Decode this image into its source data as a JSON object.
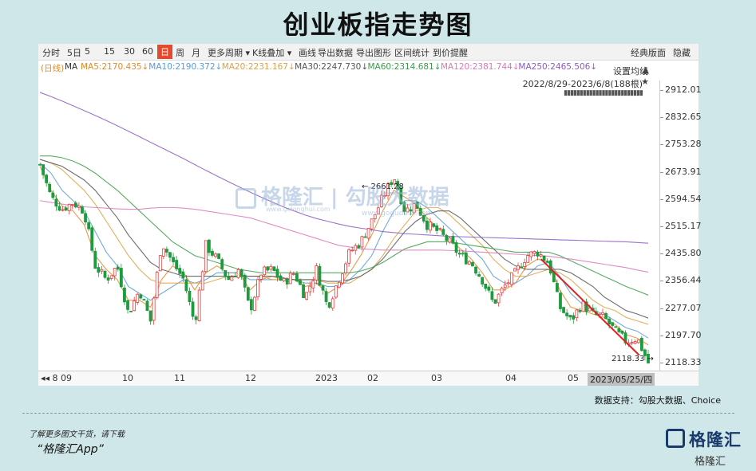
{
  "title": "创业板指走势图",
  "toolbar": {
    "items": [
      "分时",
      "5日",
      "5",
      "15",
      "30",
      "60",
      "日",
      "周",
      "月",
      "更多周期",
      "K线叠加",
      "画线",
      "导出数据",
      "导出图形",
      "区间统计",
      "到价提醒"
    ],
    "active": "日",
    "right_items": [
      "经典版面",
      "隐藏"
    ]
  },
  "ma_legend": {
    "prefix": "(日线)",
    "ma": "MA",
    "items": [
      {
        "label": "MA5:2170.435↓",
        "color": "#e28b2a"
      },
      {
        "label": "MA10:2190.372↓",
        "color": "#5a9bd8"
      },
      {
        "label": "MA20:2231.167↓",
        "color": "#e0a040"
      },
      {
        "label": "MA30:2247.730↓",
        "color": "#555555"
      },
      {
        "label": "MA60:2314.681↓",
        "color": "#3a9c4a"
      },
      {
        "label": "MA120:2381.744↓",
        "color": "#d978b8"
      },
      {
        "label": "MA250:2465.506↓",
        "color": "#8a5cc0"
      }
    ]
  },
  "setting_label": "设置均线",
  "range_label": "2022/8/29-2023/6/8(188根)",
  "watermark": {
    "text": "格隆汇 | 勾股大数据",
    "sub1": "www.gelonghui.com",
    "sub2": "www.gogudata.com"
  },
  "annotations": {
    "high": "2661.28",
    "low": "2118.33"
  },
  "x_axis_labels": [
    "8 09",
    "10",
    "11",
    "12",
    "2023",
    "02",
    "03",
    "04",
    "05"
  ],
  "x_axis_current": "2023/05/25/四",
  "source": "数据支持：勾股大数据、Choice",
  "footer_line1": "了解更多图文干货，请下载",
  "footer_line2": "“格隆汇App”",
  "logo": {
    "text": "格隆汇",
    "sub": "格隆汇"
  },
  "chart_data": {
    "type": "candlestick",
    "title": "创业板指走势图",
    "y_ticks": [
      2912.01,
      2832.65,
      2753.28,
      2673.91,
      2594.54,
      2515.17,
      2435.8,
      2356.44,
      2277.07,
      2197.7,
      2118.33
    ],
    "ylim": [
      2100,
      2935
    ],
    "x_ticks": [
      "8 09",
      "10",
      "11",
      "12",
      "2023",
      "02",
      "03",
      "04",
      "05"
    ],
    "date_range": "2022/8/29-2023/6/8",
    "bars": 188,
    "close_path": [
      2695,
      2600,
      2565,
      2585,
      2560,
      2400,
      2360,
      2400,
      2260,
      2330,
      2240,
      2470,
      2410,
      2360,
      2230,
      2460,
      2420,
      2360,
      2390,
      2270,
      2380,
      2390,
      2350,
      2380,
      2310,
      2390,
      2280,
      2360,
      2440,
      2470,
      2530,
      2600,
      2661,
      2560,
      2580,
      2520,
      2500,
      2470,
      2430,
      2410,
      2360,
      2290,
      2340,
      2380,
      2430,
      2440,
      2410,
      2280,
      2240,
      2290,
      2260,
      2250,
      2210,
      2180,
      2190,
      2118
    ],
    "ma_series": [
      {
        "name": "MA5",
        "color": "#e28b2a",
        "values": [
          2690,
          2620,
          2575,
          2560,
          2520,
          2430,
          2390,
          2360,
          2300,
          2300,
          2280,
          2360,
          2400,
          2380,
          2330,
          2380,
          2400,
          2380,
          2380,
          2330,
          2360,
          2370,
          2360,
          2360,
          2340,
          2350,
          2320,
          2340,
          2380,
          2430,
          2490,
          2560,
          2620,
          2600,
          2580,
          2540,
          2510,
          2480,
          2450,
          2420,
          2380,
          2330,
          2330,
          2350,
          2400,
          2420,
          2410,
          2330,
          2280,
          2270,
          2260,
          2250,
          2230,
          2200,
          2190,
          2170
        ]
      },
      {
        "name": "MA10",
        "color": "#5a9bd8",
        "values": [
          2700,
          2670,
          2620,
          2590,
          2560,
          2500,
          2440,
          2400,
          2340,
          2320,
          2300,
          2320,
          2340,
          2360,
          2350,
          2360,
          2380,
          2380,
          2380,
          2360,
          2360,
          2360,
          2360,
          2360,
          2350,
          2350,
          2340,
          2340,
          2360,
          2390,
          2430,
          2500,
          2560,
          2590,
          2590,
          2570,
          2540,
          2510,
          2480,
          2450,
          2420,
          2370,
          2350,
          2350,
          2370,
          2400,
          2410,
          2370,
          2320,
          2290,
          2270,
          2260,
          2240,
          2220,
          2210,
          2190
        ]
      },
      {
        "name": "MA20",
        "color": "#e0a040",
        "values": [
          2710,
          2700,
          2680,
          2650,
          2620,
          2580,
          2530,
          2480,
          2430,
          2390,
          2360,
          2350,
          2350,
          2350,
          2350,
          2350,
          2360,
          2370,
          2370,
          2370,
          2370,
          2360,
          2360,
          2360,
          2360,
          2360,
          2350,
          2350,
          2350,
          2370,
          2390,
          2430,
          2480,
          2520,
          2560,
          2570,
          2570,
          2550,
          2520,
          2490,
          2460,
          2420,
          2390,
          2370,
          2370,
          2380,
          2390,
          2380,
          2360,
          2330,
          2300,
          2280,
          2270,
          2250,
          2240,
          2230
        ]
      },
      {
        "name": "MA30",
        "color": "#555555",
        "values": [
          2710,
          2700,
          2690,
          2670,
          2650,
          2620,
          2580,
          2540,
          2490,
          2450,
          2410,
          2390,
          2380,
          2370,
          2370,
          2370,
          2370,
          2370,
          2370,
          2370,
          2370,
          2370,
          2365,
          2360,
          2360,
          2360,
          2355,
          2355,
          2360,
          2370,
          2390,
          2420,
          2460,
          2500,
          2530,
          2550,
          2560,
          2560,
          2540,
          2510,
          2480,
          2450,
          2420,
          2400,
          2390,
          2390,
          2390,
          2390,
          2380,
          2360,
          2340,
          2310,
          2290,
          2270,
          2260,
          2248
        ]
      },
      {
        "name": "MA60",
        "color": "#3a9c4a",
        "values": [
          2720,
          2720,
          2715,
          2705,
          2690,
          2670,
          2645,
          2620,
          2590,
          2560,
          2530,
          2500,
          2470,
          2450,
          2430,
          2420,
          2410,
          2400,
          2390,
          2385,
          2380,
          2380,
          2380,
          2380,
          2380,
          2380,
          2380,
          2380,
          2380,
          2385,
          2395,
          2410,
          2430,
          2450,
          2460,
          2470,
          2470,
          2470,
          2465,
          2460,
          2455,
          2450,
          2445,
          2440,
          2440,
          2440,
          2440,
          2430,
          2415,
          2400,
          2385,
          2370,
          2355,
          2340,
          2328,
          2315
        ]
      },
      {
        "name": "MA120",
        "color": "#d978b8",
        "values": [
          2590,
          2585,
          2580,
          2575,
          2572,
          2570,
          2568,
          2566,
          2565,
          2565,
          2568,
          2570,
          2570,
          2568,
          2565,
          2560,
          2555,
          2550,
          2545,
          2540,
          2530,
          2520,
          2510,
          2500,
          2490,
          2480,
          2470,
          2460,
          2455,
          2450,
          2448,
          2446,
          2446,
          2446,
          2446,
          2446,
          2446,
          2445,
          2444,
          2442,
          2440,
          2438,
          2436,
          2434,
          2432,
          2430,
          2428,
          2424,
          2420,
          2415,
          2410,
          2405,
          2400,
          2395,
          2388,
          2382
        ]
      },
      {
        "name": "MA250",
        "color": "#8a5cc0",
        "values": [
          2905,
          2893,
          2880,
          2866,
          2852,
          2838,
          2823,
          2808,
          2792,
          2776,
          2760,
          2744,
          2728,
          2712,
          2695,
          2678,
          2662,
          2646,
          2630,
          2615,
          2600,
          2586,
          2572,
          2560,
          2548,
          2538,
          2530,
          2522,
          2515,
          2510,
          2505,
          2500,
          2497,
          2494,
          2492,
          2490,
          2488,
          2486,
          2485,
          2484,
          2483,
          2482,
          2481,
          2480,
          2479,
          2478,
          2477,
          2476,
          2475,
          2474,
          2473,
          2472,
          2471,
          2470,
          2468,
          2466
        ]
      }
    ],
    "trendline": {
      "from": [
        0.815,
        2420
      ],
      "to": [
        0.975,
        2140
      ],
      "color": "#e02020"
    },
    "up_color": "#e83a3a",
    "down_color": "#1f9a3e",
    "grid": false
  }
}
